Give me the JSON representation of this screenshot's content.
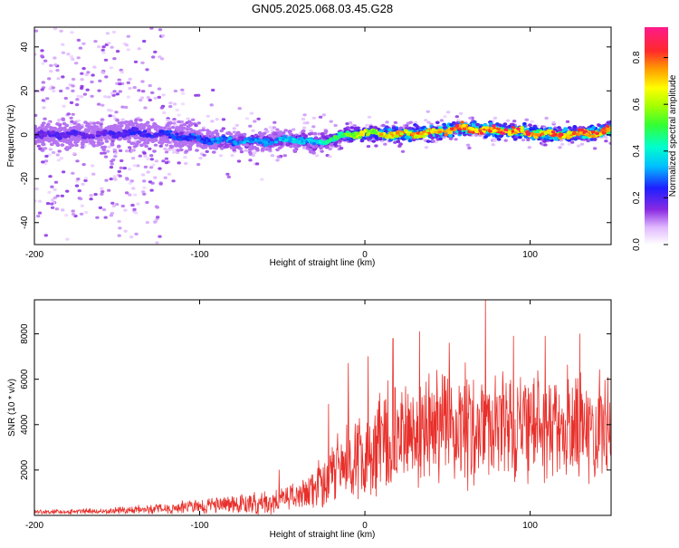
{
  "figure": {
    "title": "GN05.2025.068.03.45.G28"
  },
  "chart_data": [
    {
      "type": "heatmap",
      "title": "GN05.2025.068.03.45.G28",
      "xlabel": "Height of straight line (km)",
      "ylabel": "Frequency (Hz)",
      "xlim": [
        -200,
        149
      ],
      "ylim": [
        -50,
        49
      ],
      "xticks": [
        -200,
        -100,
        0,
        100
      ],
      "yticks": [
        -40,
        -20,
        0,
        20,
        40
      ],
      "colorbar": {
        "label": "Normalized spectral amplitude",
        "range": [
          0,
          0.93
        ],
        "ticks": [
          0.0,
          0.2,
          0.4,
          0.6,
          0.8
        ],
        "colormap": "rainbow (white-violet-blue-cyan-green-yellow-red-pink)"
      },
      "ridge": {
        "description": "dominant frequency vs height",
        "x": [
          -200,
          -180,
          -160,
          -140,
          -120,
          -100,
          -80,
          -60,
          -40,
          -30,
          -20,
          -10,
          0,
          20,
          40,
          60,
          80,
          100,
          120,
          140,
          149
        ],
        "frequency_hz": [
          0,
          0,
          0,
          1,
          0,
          -2,
          -3,
          -3,
          -2,
          -4,
          -2,
          0,
          1,
          0,
          1,
          3,
          2,
          1,
          0,
          1,
          2
        ],
        "peak_amplitude": [
          0.2,
          0.22,
          0.22,
          0.25,
          0.28,
          0.32,
          0.35,
          0.38,
          0.42,
          0.4,
          0.5,
          0.62,
          0.72,
          0.8,
          0.85,
          0.88,
          0.9,
          0.9,
          0.88,
          0.86,
          0.85
        ]
      }
    },
    {
      "type": "line",
      "xlabel": "Height of straight line (km)",
      "ylabel": "SNR (10 * v/v)",
      "xlim": [
        -200,
        149
      ],
      "ylim": [
        0,
        9500
      ],
      "xticks": [
        -200,
        -100,
        0,
        100
      ],
      "yticks": [
        2000,
        4000,
        6000,
        8000
      ],
      "color": "#e8302b",
      "envelope": {
        "x": [
          -200,
          -160,
          -140,
          -120,
          -100,
          -80,
          -60,
          -50,
          -40,
          -30,
          -20,
          -10,
          0,
          10,
          20,
          30,
          40,
          50,
          60,
          70,
          80,
          90,
          100,
          110,
          120,
          130,
          140,
          149
        ],
        "mean": [
          150,
          180,
          250,
          300,
          400,
          500,
          550,
          650,
          900,
          1300,
          1900,
          2400,
          2800,
          3100,
          3500,
          3700,
          3900,
          4000,
          4000,
          4100,
          4000,
          3950,
          3900,
          3900,
          3800,
          3850,
          3800,
          3850
        ],
        "amplitude": [
          100,
          120,
          180,
          230,
          320,
          420,
          500,
          550,
          700,
          950,
          1300,
          1700,
          2000,
          2200,
          2400,
          2400,
          2500,
          2500,
          2500,
          2500,
          2500,
          2500,
          2400,
          2400,
          2400,
          2300,
          2300,
          2300
        ]
      },
      "peaks": [
        {
          "x": -52,
          "y": 2000
        },
        {
          "x": -22,
          "y": 4900
        },
        {
          "x": -10,
          "y": 6700
        },
        {
          "x": 2,
          "y": 7000
        },
        {
          "x": 17,
          "y": 7800
        },
        {
          "x": 33,
          "y": 8100
        },
        {
          "x": 51,
          "y": 7600
        },
        {
          "x": 73,
          "y": 9500
        },
        {
          "x": 90,
          "y": 7900
        },
        {
          "x": 109,
          "y": 7900
        },
        {
          "x": 130,
          "y": 8000
        }
      ]
    }
  ]
}
